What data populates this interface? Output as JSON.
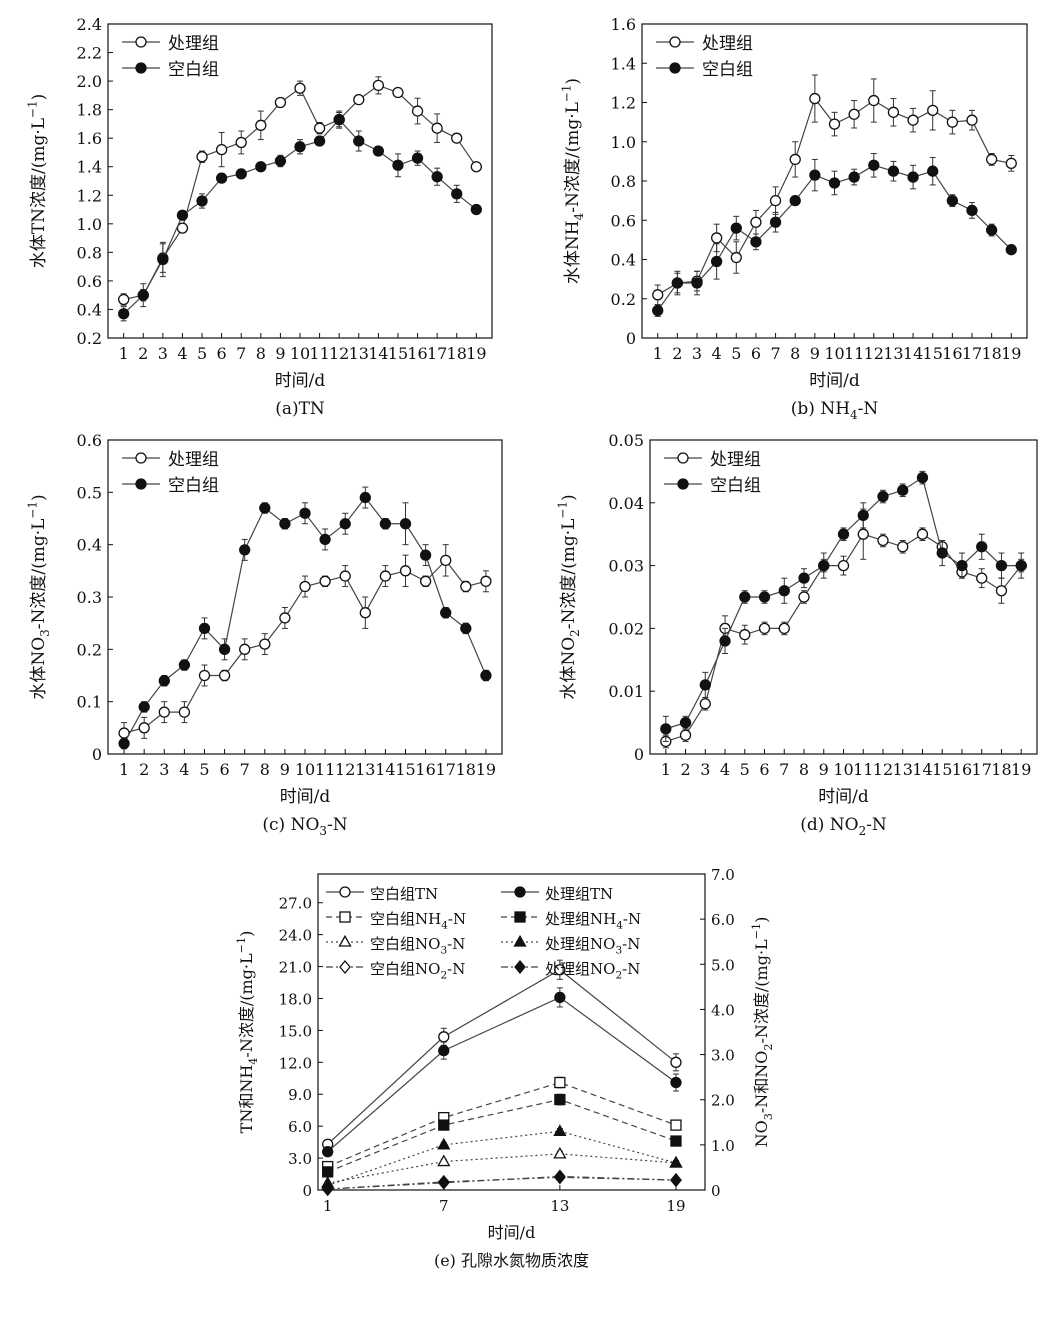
{
  "chart_data": [
    {
      "id": "a",
      "type": "line",
      "caption": "(a)TN",
      "xlabel": "时间/d",
      "ylabel": "水体TN浓度/(mg·L⁻¹)",
      "ylim": [
        0.2,
        2.4
      ],
      "yticks": [
        "0.2",
        "0.4",
        "0.6",
        "0.8",
        "1.0",
        "1.2",
        "1.4",
        "1.6",
        "1.8",
        "2.0",
        "2.2",
        "2.4"
      ],
      "x": [
        1,
        2,
        3,
        4,
        5,
        6,
        7,
        8,
        9,
        10,
        11,
        12,
        13,
        14,
        15,
        16,
        17,
        18,
        19
      ],
      "legend_position": "top-left",
      "series": [
        {
          "name": "处理组",
          "marker": "open-circle",
          "values": [
            0.47,
            0.5,
            0.76,
            0.97,
            1.47,
            1.52,
            1.57,
            1.69,
            1.85,
            1.95,
            1.67,
            1.73,
            1.87,
            1.97,
            1.92,
            1.79,
            1.67,
            1.6,
            1.4
          ],
          "errors": [
            0.04,
            0.04,
            0.1,
            0.03,
            0.04,
            0.12,
            0.08,
            0.1,
            0.03,
            0.05,
            0.04,
            0.06,
            0.02,
            0.06,
            0.02,
            0.09,
            0.1,
            0.02,
            0.03
          ]
        },
        {
          "name": "空白组",
          "marker": "filled-circle",
          "values": [
            0.37,
            0.5,
            0.75,
            1.06,
            1.16,
            1.32,
            1.35,
            1.4,
            1.44,
            1.54,
            1.58,
            1.73,
            1.58,
            1.51,
            1.41,
            1.46,
            1.33,
            1.21,
            1.1
          ],
          "errors": [
            0.05,
            0.08,
            0.12,
            0.03,
            0.05,
            0.03,
            0.03,
            0.02,
            0.04,
            0.05,
            0.03,
            0.05,
            0.07,
            0.03,
            0.08,
            0.05,
            0.06,
            0.06,
            0.02
          ]
        }
      ]
    },
    {
      "id": "b",
      "type": "line",
      "caption": "(b) NH₄-N",
      "xlabel": "时间/d",
      "ylabel": "水体NH₄-N浓度/(mg·L⁻¹)",
      "ylim": [
        0,
        1.6
      ],
      "yticks": [
        "0",
        "0.2",
        "0.4",
        "0.6",
        "0.8",
        "1.0",
        "1.2",
        "1.4",
        "1.6"
      ],
      "x": [
        1,
        2,
        3,
        4,
        5,
        6,
        7,
        8,
        9,
        10,
        11,
        12,
        13,
        14,
        15,
        16,
        17,
        18,
        19
      ],
      "legend_position": "top-left",
      "series": [
        {
          "name": "处理组",
          "marker": "open-circle",
          "values": [
            0.22,
            0.28,
            0.29,
            0.51,
            0.41,
            0.59,
            0.7,
            0.91,
            1.22,
            1.09,
            1.14,
            1.21,
            1.15,
            1.11,
            1.16,
            1.1,
            1.11,
            0.91,
            0.89
          ],
          "errors": [
            0.05,
            0.05,
            0.05,
            0.07,
            0.08,
            0.06,
            0.07,
            0.09,
            0.12,
            0.06,
            0.07,
            0.11,
            0.07,
            0.06,
            0.1,
            0.06,
            0.05,
            0.03,
            0.04
          ]
        },
        {
          "name": "空白组",
          "marker": "filled-circle",
          "values": [
            0.14,
            0.28,
            0.28,
            0.39,
            0.56,
            0.49,
            0.59,
            0.7,
            0.83,
            0.79,
            0.82,
            0.88,
            0.85,
            0.82,
            0.85,
            0.7,
            0.65,
            0.55,
            0.45
          ]
        },
        {
          "errors_note": "errors for 空白组"
        }
      ],
      "blank_errors": [
        0.03,
        0.06,
        0.06,
        0.09,
        0.06,
        0.04,
        0.05,
        0.02,
        0.08,
        0.06,
        0.04,
        0.06,
        0.05,
        0.06,
        0.07,
        0.03,
        0.04,
        0.03,
        0.01
      ]
    },
    {
      "id": "c",
      "type": "line",
      "caption": "(c) NO₃-N",
      "xlabel": "时间/d",
      "ylabel": "水体NO₃-N浓度/(mg·L⁻¹)",
      "ylim": [
        0,
        0.6
      ],
      "yticks": [
        "0",
        "0.1",
        "0.2",
        "0.3",
        "0.4",
        "0.5",
        "0.6"
      ],
      "x": [
        1,
        2,
        3,
        4,
        5,
        6,
        7,
        8,
        9,
        10,
        11,
        12,
        13,
        14,
        15,
        16,
        17,
        18,
        19
      ],
      "legend_position": "top-left",
      "series": [
        {
          "name": "处理组",
          "marker": "open-circle",
          "values": [
            0.04,
            0.05,
            0.08,
            0.08,
            0.15,
            0.15,
            0.2,
            0.21,
            0.26,
            0.32,
            0.33,
            0.34,
            0.27,
            0.34,
            0.35,
            0.33,
            0.37,
            0.32,
            0.33
          ],
          "errors": [
            0.02,
            0.02,
            0.02,
            0.02,
            0.02,
            0.01,
            0.02,
            0.02,
            0.02,
            0.02,
            0.01,
            0.02,
            0.03,
            0.02,
            0.03,
            0.01,
            0.03,
            0.01,
            0.02
          ]
        },
        {
          "name": "空白组",
          "marker": "filled-circle",
          "values": [
            0.02,
            0.09,
            0.14,
            0.17,
            0.24,
            0.2,
            0.39,
            0.47,
            0.44,
            0.46,
            0.41,
            0.44,
            0.49,
            0.44,
            0.44,
            0.38,
            0.27,
            0.24,
            0.15
          ],
          "errors": [
            0.01,
            0.01,
            0.01,
            0.01,
            0.02,
            0.02,
            0.02,
            0.01,
            0.01,
            0.02,
            0.02,
            0.02,
            0.02,
            0.01,
            0.04,
            0.02,
            0.01,
            0.01,
            0.01
          ]
        }
      ]
    },
    {
      "id": "d",
      "type": "line",
      "caption": "(d) NO₂-N",
      "xlabel": "时间/d",
      "ylabel": "水体NO₂-N浓度/(mg·L⁻¹)",
      "ylim": [
        0,
        0.05
      ],
      "yticks": [
        "0",
        "0.01",
        "0.02",
        "0.03",
        "0.04",
        "0.05"
      ],
      "x": [
        1,
        2,
        3,
        4,
        5,
        6,
        7,
        8,
        9,
        10,
        11,
        12,
        13,
        14,
        15,
        16,
        17,
        18,
        19
      ],
      "legend_position": "top-left",
      "series": [
        {
          "name": "处理组",
          "marker": "open-circle",
          "values": [
            0.002,
            0.003,
            0.008,
            0.02,
            0.019,
            0.02,
            0.02,
            0.025,
            0.03,
            0.03,
            0.035,
            0.034,
            0.033,
            0.035,
            0.033,
            0.029,
            0.028,
            0.026,
            0.03
          ],
          "errors": [
            0.001,
            0.001,
            0.001,
            0.002,
            0.0015,
            0.001,
            0.001,
            0.001,
            0.001,
            0.0015,
            0.004,
            0.001,
            0.001,
            0.001,
            0.001,
            0.001,
            0.0015,
            0.002,
            0.001
          ]
        },
        {
          "name": "空白组",
          "marker": "filled-circle",
          "values": [
            0.004,
            0.005,
            0.011,
            0.018,
            0.025,
            0.025,
            0.026,
            0.028,
            0.03,
            0.035,
            0.038,
            0.041,
            0.042,
            0.044,
            0.032,
            0.03,
            0.033,
            0.03,
            0.03
          ],
          "errors": [
            0.002,
            0.001,
            0.002,
            0.002,
            0.001,
            0.001,
            0.002,
            0.0015,
            0.002,
            0.001,
            0.002,
            0.001,
            0.001,
            0.001,
            0.002,
            0.002,
            0.002,
            0.002,
            0.002
          ]
        }
      ]
    },
    {
      "id": "e",
      "type": "line",
      "caption": "(e) 孔隙水氮物质浓度",
      "xlabel": "时间/d",
      "ylabel": "TN和NH₄-N浓度/(mg·L⁻¹)",
      "ylabel_right": "NO₃-N和NO₂-N浓度/(mg·L⁻¹)",
      "ylim": [
        0,
        29.7
      ],
      "ylim_right": [
        0,
        7.0
      ],
      "yticks": [
        "0",
        "3.0",
        "6.0",
        "9.0",
        "12.0",
        "15.0",
        "18.0",
        "21.0",
        "24.0",
        "27.0"
      ],
      "yticks_right": [
        "0",
        "1.0",
        "2.0",
        "3.0",
        "4.0",
        "5.0",
        "6.0",
        "7.0"
      ],
      "x": [
        1,
        7,
        13,
        19
      ],
      "legend_position": "top",
      "series": [
        {
          "name": "空白组TN",
          "axis": "left",
          "marker": "open-circle",
          "dash": "solid",
          "values": [
            4.3,
            14.4,
            20.7,
            12.0
          ],
          "errors": [
            0.3,
            0.8,
            0.9,
            0.8
          ]
        },
        {
          "name": "处理组TN",
          "axis": "left",
          "marker": "filled-circle",
          "dash": "solid",
          "values": [
            3.6,
            13.1,
            18.1,
            10.1
          ],
          "errors": [
            0.3,
            0.8,
            0.9,
            0.8
          ]
        },
        {
          "name": "空白组NH₄-N",
          "axis": "left",
          "marker": "open-square",
          "dash": "dashed",
          "values": [
            2.2,
            6.8,
            10.1,
            6.1
          ],
          "errors": [
            0.2,
            0.4,
            0.5,
            0.3
          ]
        },
        {
          "name": "处理组NH₄-N",
          "axis": "left",
          "marker": "filled-square",
          "dash": "dashed",
          "values": [
            1.7,
            6.1,
            8.5,
            4.6
          ],
          "errors": [
            0.2,
            0.4,
            0.5,
            0.3
          ]
        },
        {
          "name": "空白组NO₃-N",
          "axis": "right",
          "marker": "open-triangle",
          "dash": "dotted",
          "values": [
            0.15,
            0.63,
            0.8,
            0.6
          ],
          "errors": [
            0.03,
            0.05,
            0.06,
            0.05
          ]
        },
        {
          "name": "处理组NO₃-N",
          "axis": "right",
          "marker": "filled-triangle",
          "dash": "dotted",
          "values": [
            0.1,
            1.0,
            1.3,
            0.6
          ],
          "errors": [
            0.03,
            0.05,
            0.06,
            0.05
          ]
        },
        {
          "name": "空白组NO₂-N",
          "axis": "right",
          "marker": "open-diamond",
          "dash": "dashdot",
          "values": [
            0.02,
            0.18,
            0.28,
            0.22
          ],
          "errors": [
            0.01,
            0.02,
            0.03,
            0.02
          ]
        },
        {
          "name": "处理组NO₂-N",
          "axis": "right",
          "marker": "filled-diamond",
          "dash": "dashdot",
          "values": [
            0.02,
            0.16,
            0.3,
            0.22
          ],
          "errors": [
            0.01,
            0.02,
            0.03,
            0.02
          ]
        }
      ]
    }
  ]
}
